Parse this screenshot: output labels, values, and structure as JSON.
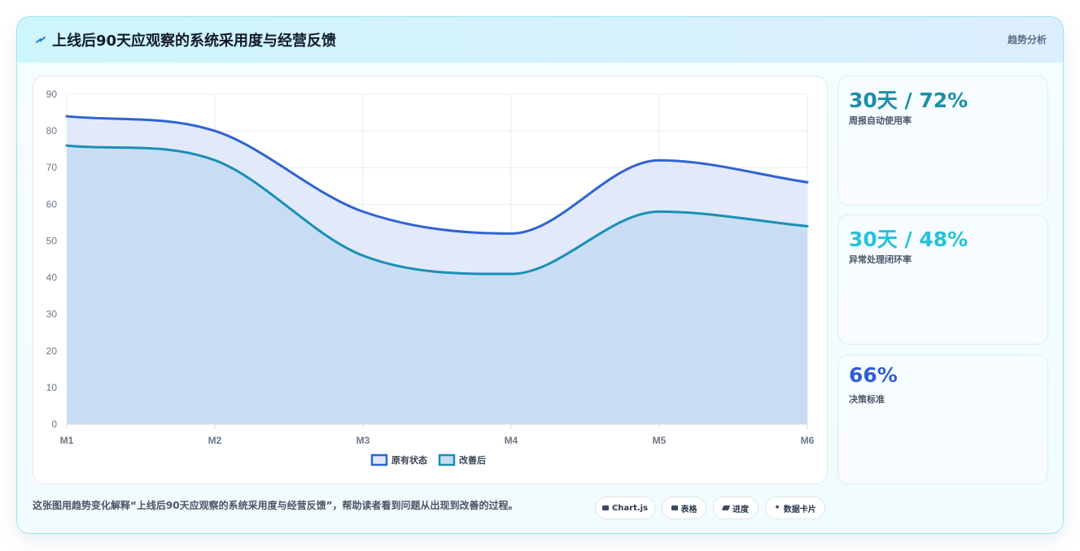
{
  "header": {
    "title": "上线后90天应观察的系统采用度与经营反馈",
    "link_label": "趋势分析",
    "icon": "lightning-icon"
  },
  "chart_data": {
    "type": "area",
    "categories": [
      "M1",
      "M2",
      "M3",
      "M4",
      "M5",
      "M6"
    ],
    "series": [
      {
        "name": "原有状态",
        "values": [
          84,
          80,
          58,
          52,
          72,
          66
        ],
        "color": "#2f63d3",
        "fill": "#dfe8fb"
      },
      {
        "name": "改善后",
        "values": [
          76,
          72,
          46,
          41,
          58,
          54
        ],
        "color": "#1a8fb5",
        "fill": "#c5dcf2"
      }
    ],
    "yticks": [
      0,
      10,
      20,
      30,
      40,
      50,
      60,
      70,
      80,
      90
    ],
    "ylim": [
      0,
      90
    ],
    "grid": true,
    "legend_position": "bottom"
  },
  "stats": [
    {
      "value": "30天 / 72%",
      "label": "周报自动使用率",
      "color": "#1a8fa8"
    },
    {
      "value": "30天 / 48%",
      "label": "异常处理闭环率",
      "color": "#27c1dc"
    },
    {
      "value": "66%",
      "label": "决策标准",
      "color": "#2d5fd1"
    }
  ],
  "caption": "这张图用趋势变化解释“上线后90天应观察的系统采用度与经营反馈”，帮助读者看到问题从出现到改善的过程。",
  "chips": [
    {
      "label": "Chart.js",
      "icon": "chart-icon"
    },
    {
      "label": "表格",
      "icon": "table-icon"
    },
    {
      "label": "进度",
      "icon": "progress-icon"
    },
    {
      "label": "数据卡片",
      "icon": "sparkle-icon"
    }
  ]
}
